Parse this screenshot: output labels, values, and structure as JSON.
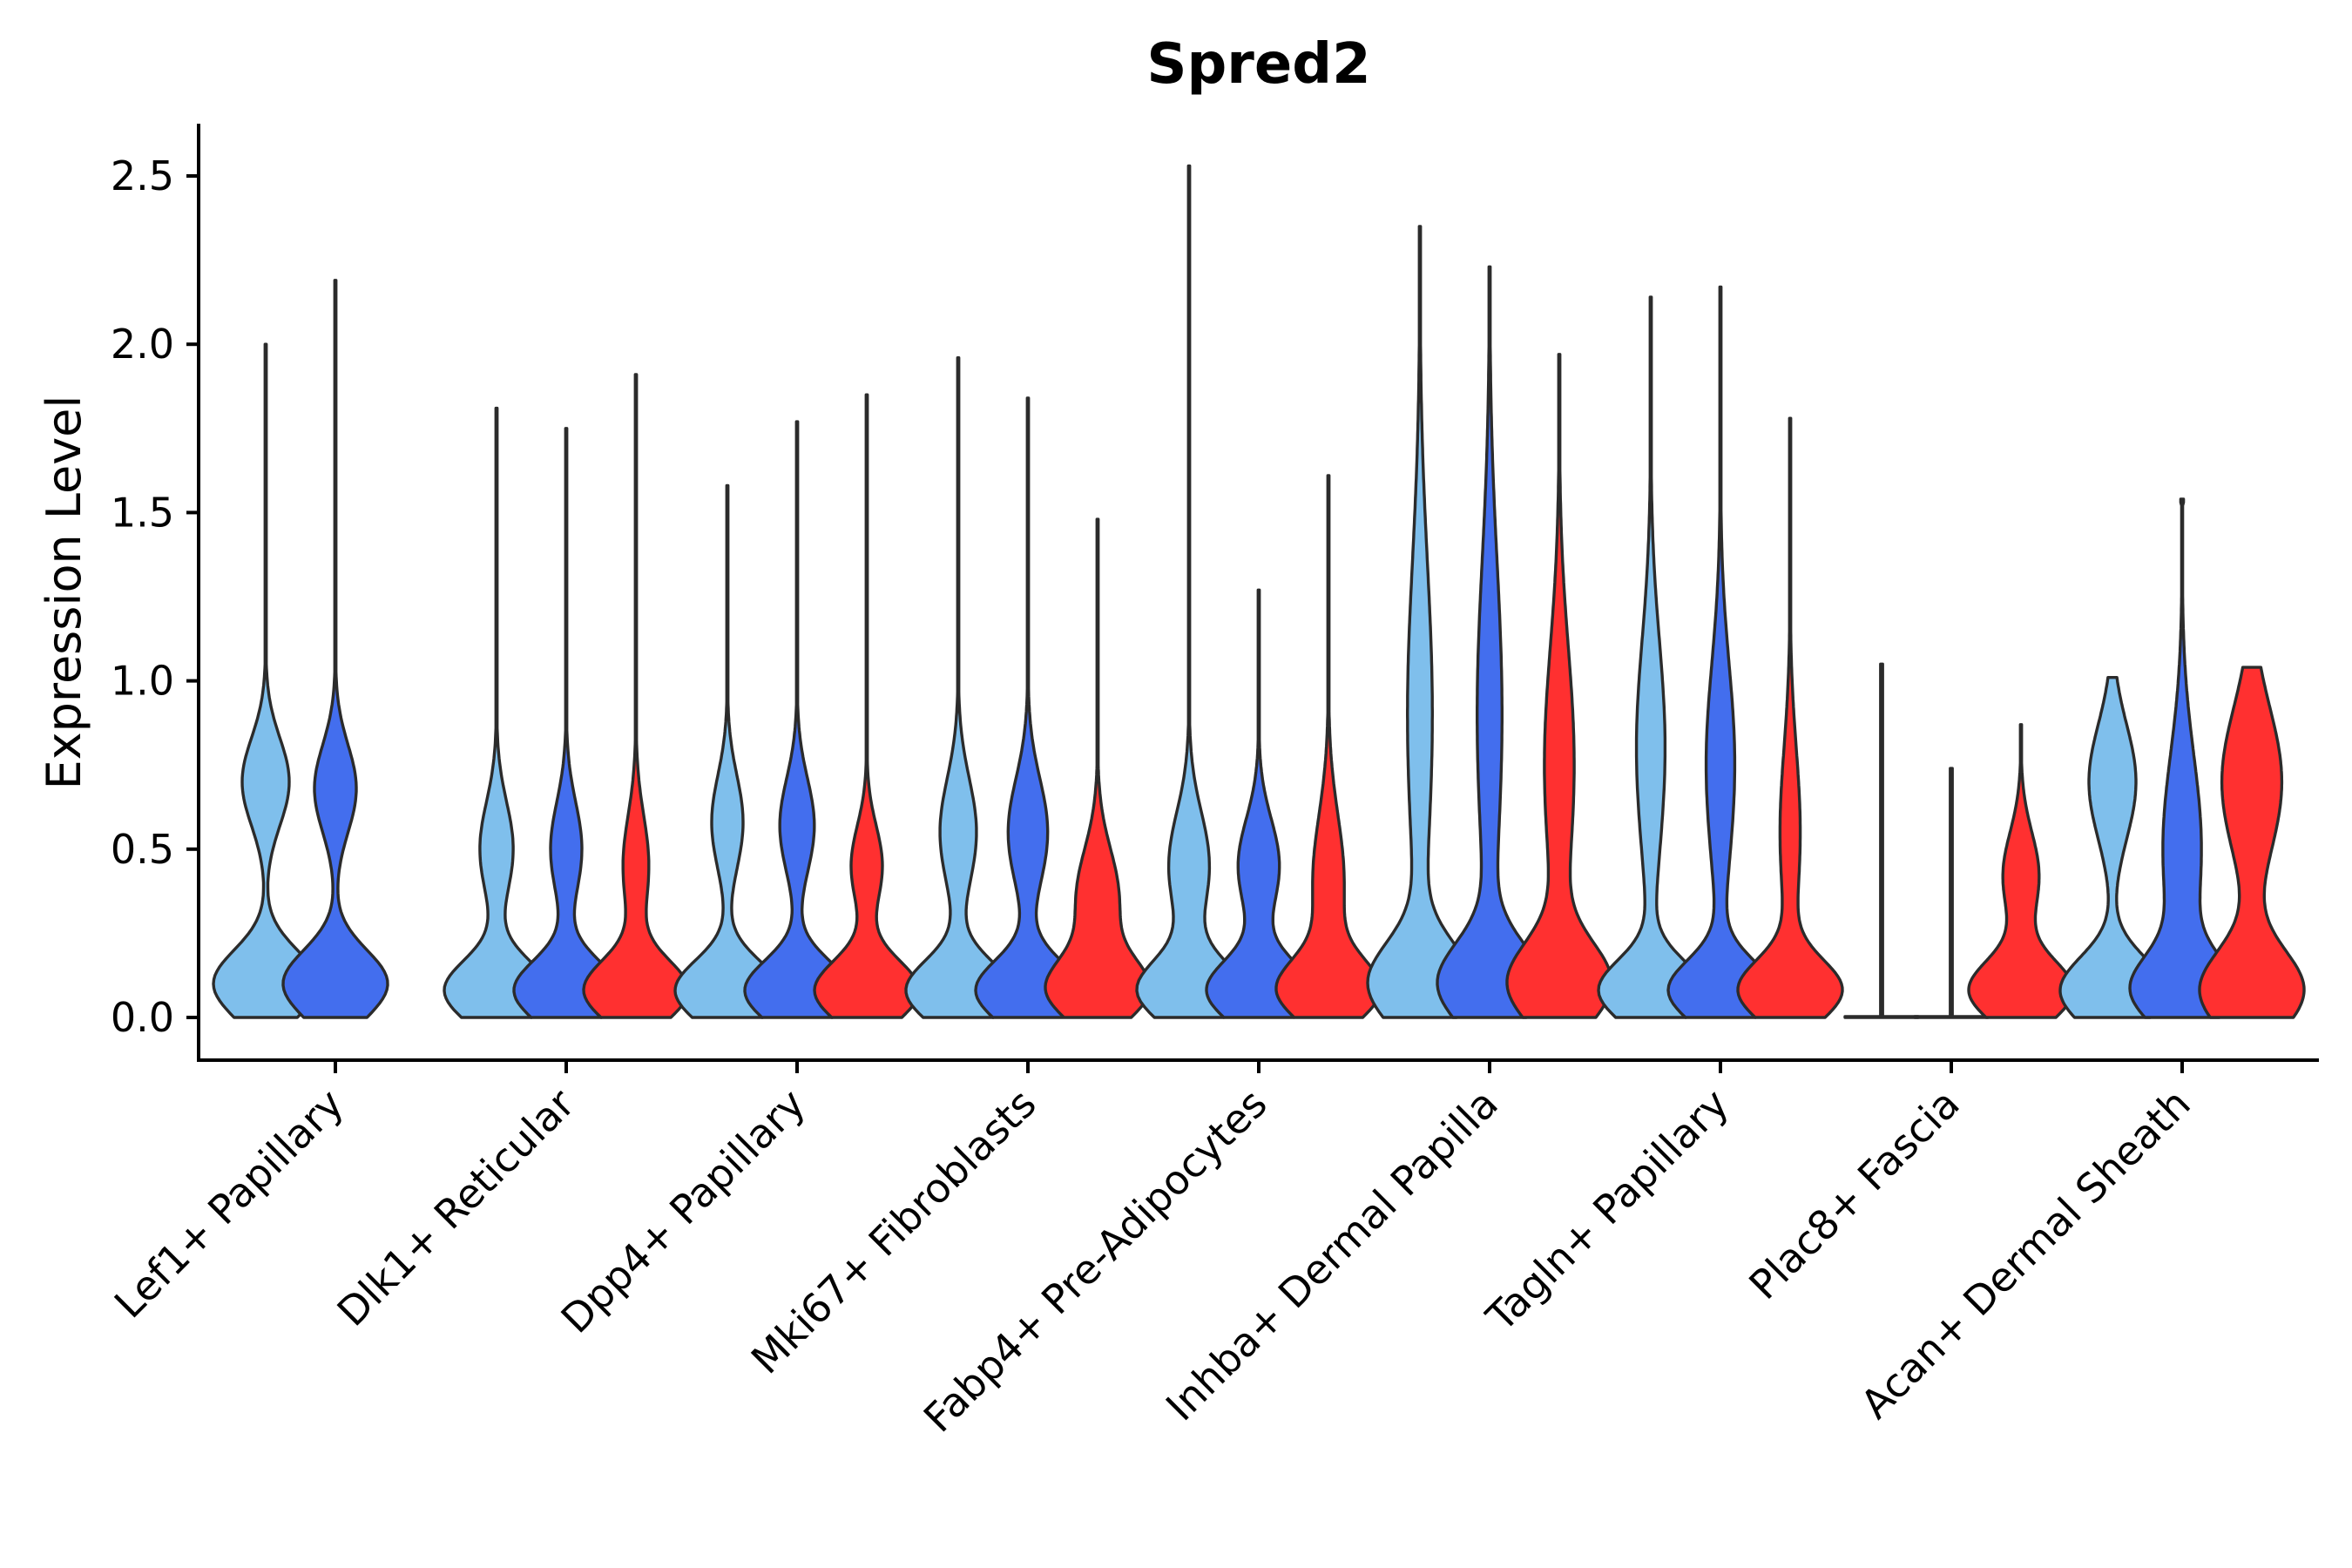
{
  "chart_data": {
    "type": "violin",
    "title": "Spred2",
    "xlabel": "",
    "ylabel": "Expression Level",
    "ylim": [
      -0.13,
      2.65
    ],
    "yticks": [
      0.0,
      0.5,
      1.0,
      1.5,
      2.0,
      2.5
    ],
    "ytick_labels": [
      "0.0",
      "0.5",
      "1.0",
      "1.5",
      "2.0",
      "2.5"
    ],
    "grid": false,
    "legend": "none",
    "series": [
      {
        "name": "group 1",
        "color": "#7fbfec"
      },
      {
        "name": "group 2",
        "color": "#436eee"
      },
      {
        "name": "group 3",
        "color": "#ff3030"
      }
    ],
    "categories": [
      {
        "label": "Lef1+ Papillary",
        "violins": [
          {
            "series": 0,
            "max": 2.0,
            "width": 1.0,
            "modes": [
              [
                0.1,
                1.0,
                0.1
              ],
              [
                0.7,
                0.45,
                0.13
              ]
            ]
          },
          {
            "series": 1,
            "max": 2.19,
            "width": 1.0,
            "modes": [
              [
                0.1,
                1.0,
                0.1
              ],
              [
                0.68,
                0.4,
                0.13
              ]
            ]
          }
        ]
      },
      {
        "label": "Dlk1+ Reticular",
        "violins": [
          {
            "series": 0,
            "max": 1.81,
            "width": 1.0,
            "modes": [
              [
                0.08,
                1.0,
                0.09
              ],
              [
                0.5,
                0.32,
                0.14
              ]
            ]
          },
          {
            "series": 1,
            "max": 1.75,
            "width": 1.0,
            "modes": [
              [
                0.08,
                1.0,
                0.09
              ],
              [
                0.5,
                0.3,
                0.14
              ]
            ]
          },
          {
            "series": 2,
            "max": 1.91,
            "width": 1.0,
            "modes": [
              [
                0.08,
                1.0,
                0.09
              ],
              [
                0.45,
                0.25,
                0.15
              ]
            ]
          }
        ]
      },
      {
        "label": "Dpp4+ Papillary",
        "violins": [
          {
            "series": 0,
            "max": 1.58,
            "width": 1.0,
            "modes": [
              [
                0.08,
                1.0,
                0.09
              ],
              [
                0.58,
                0.3,
                0.14
              ]
            ]
          },
          {
            "series": 1,
            "max": 1.77,
            "width": 1.0,
            "modes": [
              [
                0.08,
                1.0,
                0.09
              ],
              [
                0.57,
                0.33,
                0.14
              ]
            ]
          },
          {
            "series": 2,
            "max": 1.85,
            "width": 1.0,
            "modes": [
              [
                0.08,
                1.0,
                0.09
              ],
              [
                0.45,
                0.3,
                0.12
              ]
            ]
          }
        ]
      },
      {
        "label": "Mki67+ Fibroblasts",
        "violins": [
          {
            "series": 0,
            "max": 1.96,
            "width": 1.0,
            "modes": [
              [
                0.08,
                1.0,
                0.09
              ],
              [
                0.55,
                0.35,
                0.16
              ]
            ]
          },
          {
            "series": 1,
            "max": 1.84,
            "width": 1.0,
            "modes": [
              [
                0.08,
                1.0,
                0.09
              ],
              [
                0.55,
                0.38,
                0.16
              ]
            ]
          },
          {
            "series": 2,
            "max": 1.48,
            "width": 1.0,
            "modes": [
              [
                0.08,
                1.0,
                0.09
              ],
              [
                0.35,
                0.45,
                0.15
              ]
            ]
          }
        ]
      },
      {
        "label": "Fabp4+ Pre-Adipocytes",
        "violins": [
          {
            "series": 0,
            "max": 2.53,
            "width": 1.0,
            "modes": [
              [
                0.08,
                1.0,
                0.09
              ],
              [
                0.45,
                0.4,
                0.16
              ]
            ]
          },
          {
            "series": 1,
            "max": 1.27,
            "width": 1.0,
            "modes": [
              [
                0.08,
                1.0,
                0.09
              ],
              [
                0.45,
                0.4,
                0.14
              ]
            ]
          },
          {
            "series": 2,
            "max": 1.61,
            "width": 1.0,
            "modes": [
              [
                0.08,
                1.0,
                0.09
              ],
              [
                0.4,
                0.33,
                0.2
              ]
            ]
          }
        ]
      },
      {
        "label": "Inhba+ Dermal Papilla",
        "violins": [
          {
            "series": 0,
            "max": 2.35,
            "width": 1.0,
            "modes": [
              [
                0.1,
                1.0,
                0.12
              ],
              [
                0.9,
                0.25,
                0.45
              ]
            ]
          },
          {
            "series": 1,
            "max": 2.23,
            "width": 1.0,
            "modes": [
              [
                0.1,
                1.0,
                0.12
              ],
              [
                0.9,
                0.25,
                0.45
              ]
            ]
          },
          {
            "series": 2,
            "max": 1.97,
            "width": 1.0,
            "modes": [
              [
                0.1,
                1.0,
                0.12
              ],
              [
                0.75,
                0.3,
                0.35
              ]
            ]
          }
        ]
      },
      {
        "label": "Tagln+ Papillary",
        "violins": [
          {
            "series": 0,
            "max": 2.14,
            "width": 1.0,
            "modes": [
              [
                0.08,
                1.0,
                0.09
              ],
              [
                0.8,
                0.28,
                0.32
              ]
            ]
          },
          {
            "series": 1,
            "max": 2.17,
            "width": 1.0,
            "modes": [
              [
                0.08,
                1.0,
                0.09
              ],
              [
                0.75,
                0.28,
                0.3
              ]
            ]
          },
          {
            "series": 2,
            "max": 1.78,
            "width": 1.0,
            "modes": [
              [
                0.08,
                1.0,
                0.09
              ],
              [
                0.55,
                0.2,
                0.25
              ]
            ]
          }
        ]
      },
      {
        "label": "Plac8+ Fascia",
        "violins": [
          {
            "series": 0,
            "max": 1.05,
            "width": 1.0,
            "flat": true,
            "modes": []
          },
          {
            "series": 1,
            "max": 0.74,
            "width": 1.0,
            "flat": true,
            "modes": []
          },
          {
            "series": 2,
            "max": 0.87,
            "width": 1.0,
            "modes": [
              [
                0.08,
                1.0,
                0.09
              ],
              [
                0.42,
                0.35,
                0.13
              ]
            ]
          }
        ]
      },
      {
        "label": "Acan+ Dermal Sheath",
        "violins": [
          {
            "series": 0,
            "max": 1.01,
            "width": 1.0,
            "modes": [
              [
                0.08,
                1.0,
                0.1
              ],
              [
                0.7,
                0.45,
                0.17
              ]
            ],
            "flat_top": true
          },
          {
            "series": 1,
            "max": 1.54,
            "width": 1.0,
            "modes": [
              [
                0.08,
                1.0,
                0.1
              ],
              [
                0.5,
                0.42,
                0.28
              ]
            ],
            "flat_top": true
          },
          {
            "series": 2,
            "max": 1.04,
            "width": 1.0,
            "modes": [
              [
                0.08,
                0.95,
                0.12
              ],
              [
                0.7,
                0.55,
                0.22
              ]
            ],
            "flat_top": true
          }
        ]
      }
    ]
  }
}
